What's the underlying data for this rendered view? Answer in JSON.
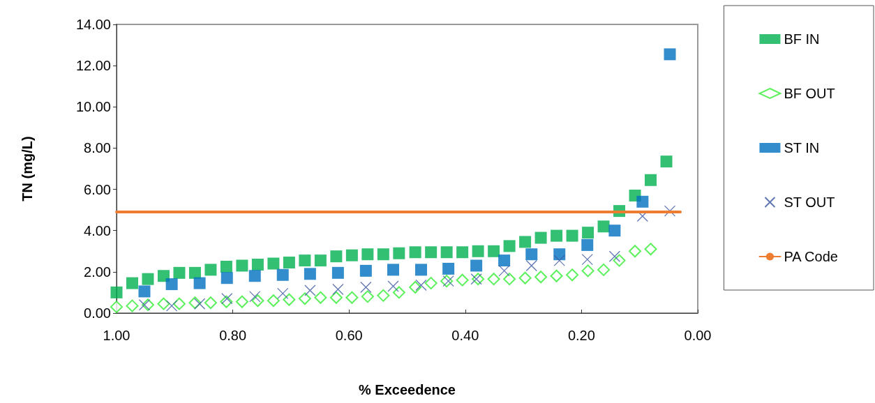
{
  "chart_data": {
    "type": "scatter",
    "xlabel": "% Exceedence",
    "ylabel": "TN (mg/L)",
    "xlim": [
      1,
      0
    ],
    "xticks": [
      {
        "value": 1,
        "label": "1.00"
      },
      {
        "value": 0.8,
        "label": "0.80"
      },
      {
        "value": 0.6,
        "label": "0.60"
      },
      {
        "value": 0.4,
        "label": "0.40"
      },
      {
        "value": 0.2,
        "label": "0.20"
      },
      {
        "value": 0,
        "label": "0.00"
      }
    ],
    "ylim": [
      0,
      14
    ],
    "yticks": [
      {
        "value": 0,
        "label": "0.00"
      },
      {
        "value": 2,
        "label": "2.00"
      },
      {
        "value": 4,
        "label": "4.00"
      },
      {
        "value": 6,
        "label": "6.00"
      },
      {
        "value": 8,
        "label": "8.00"
      },
      {
        "value": 10,
        "label": "10.00"
      },
      {
        "value": 12,
        "label": "12.00"
      },
      {
        "value": 14,
        "label": "14.00"
      }
    ],
    "grid": false,
    "legend": "right",
    "series": [
      {
        "name": "BF IN",
        "color": "#00b050",
        "marker": "square",
        "x": [
          1,
          0.973,
          0.946,
          0.919,
          0.892,
          0.865,
          0.838,
          0.811,
          0.784,
          0.757,
          0.73,
          0.703,
          0.676,
          0.649,
          0.622,
          0.595,
          0.568,
          0.541,
          0.514,
          0.486,
          0.459,
          0.432,
          0.405,
          0.378,
          0.351,
          0.324,
          0.297,
          0.27,
          0.243,
          0.216,
          0.189,
          0.162,
          0.135,
          0.108,
          0.081,
          0.054
        ],
        "values": [
          1.0,
          1.45,
          1.65,
          1.8,
          1.95,
          1.95,
          2.1,
          2.25,
          2.3,
          2.35,
          2.4,
          2.45,
          2.55,
          2.55,
          2.75,
          2.8,
          2.85,
          2.85,
          2.9,
          2.95,
          2.95,
          2.95,
          2.95,
          3.0,
          3.0,
          3.25,
          3.45,
          3.65,
          3.75,
          3.75,
          3.9,
          4.2,
          4.95,
          5.7,
          6.45,
          7.35
        ]
      },
      {
        "name": "BF OUT",
        "color": "#33ee33",
        "marker": "diamond",
        "x": [
          1,
          0.973,
          0.946,
          0.919,
          0.892,
          0.865,
          0.838,
          0.811,
          0.784,
          0.757,
          0.73,
          0.703,
          0.676,
          0.649,
          0.622,
          0.595,
          0.568,
          0.541,
          0.514,
          0.486,
          0.459,
          0.432,
          0.405,
          0.378,
          0.351,
          0.324,
          0.297,
          0.27,
          0.243,
          0.216,
          0.189,
          0.162,
          0.135,
          0.108,
          0.081
        ],
        "values": [
          0.3,
          0.35,
          0.4,
          0.45,
          0.45,
          0.5,
          0.5,
          0.55,
          0.55,
          0.6,
          0.6,
          0.65,
          0.7,
          0.75,
          0.75,
          0.75,
          0.8,
          0.85,
          1.0,
          1.25,
          1.45,
          1.55,
          1.6,
          1.65,
          1.65,
          1.65,
          1.7,
          1.75,
          1.8,
          1.85,
          2.05,
          2.1,
          2.55,
          3.0,
          3.1
        ]
      },
      {
        "name": "ST IN",
        "color": "#0070c0",
        "marker": "square",
        "x": [
          0.952,
          0.905,
          0.857,
          0.81,
          0.762,
          0.714,
          0.667,
          0.619,
          0.571,
          0.524,
          0.476,
          0.429,
          0.381,
          0.333,
          0.286,
          0.238,
          0.19,
          0.143,
          0.095,
          0.048
        ],
        "values": [
          1.05,
          1.4,
          1.45,
          1.7,
          1.8,
          1.85,
          1.9,
          1.95,
          2.05,
          2.1,
          2.1,
          2.15,
          2.3,
          2.55,
          2.85,
          2.85,
          3.3,
          4.0,
          5.4,
          12.55
        ]
      },
      {
        "name": "ST OUT",
        "color": "#3a55a0",
        "marker": "cross",
        "x": [
          0.952,
          0.905,
          0.857,
          0.81,
          0.762,
          0.714,
          0.667,
          0.619,
          0.571,
          0.524,
          0.476,
          0.429,
          0.381,
          0.333,
          0.286,
          0.238,
          0.19,
          0.143,
          0.095,
          0.048
        ],
        "values": [
          0.4,
          0.35,
          0.45,
          0.7,
          0.8,
          0.95,
          1.1,
          1.15,
          1.25,
          1.3,
          1.35,
          1.55,
          1.65,
          2.05,
          2.3,
          2.55,
          2.6,
          2.75,
          4.7,
          4.95
        ]
      },
      {
        "name": "PA Code",
        "type": "line",
        "color": "#ed7d31",
        "marker": "none",
        "line_style": "solid",
        "x": [
          1,
          0.03
        ],
        "values": [
          4.9,
          4.9
        ]
      }
    ]
  }
}
